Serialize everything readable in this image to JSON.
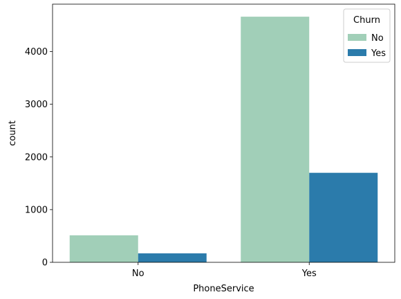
{
  "chart_data": {
    "type": "bar",
    "title": "",
    "xlabel": "PhoneService",
    "ylabel": "count",
    "categories": [
      "No",
      "Yes"
    ],
    "series": [
      {
        "name": "No",
        "values": [
          512,
          4662
        ]
      },
      {
        "name": "Yes",
        "values": [
          170,
          1699
        ]
      }
    ],
    "ylim": [
      0,
      4900
    ],
    "yticks": [
      0,
      1000,
      2000,
      3000,
      4000
    ],
    "grid": false,
    "legend": {
      "title": "Churn",
      "placement": "top-right"
    },
    "colors": {
      "No": "#a1cfb8",
      "Yes": "#2b7bab"
    }
  }
}
